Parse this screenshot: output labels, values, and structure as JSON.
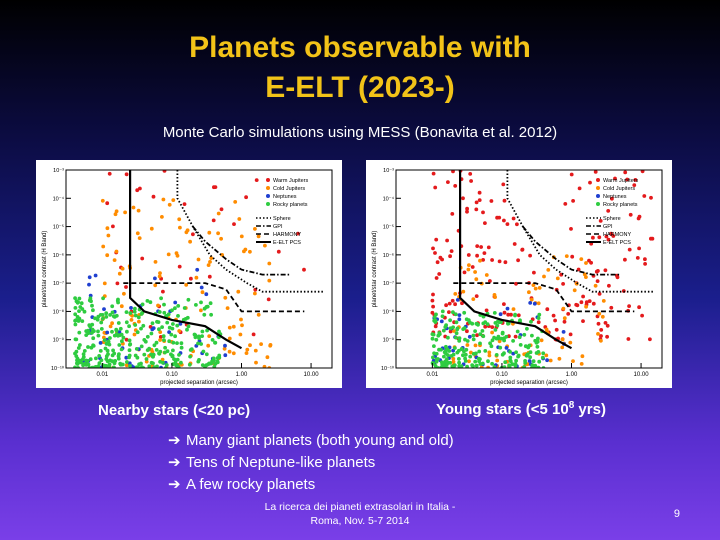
{
  "slide": {
    "title_line1": "Planets observable with",
    "title_line2": "E-ELT (2023-)",
    "subtitle": "Monte Carlo simulations using MESS (Bonavita et al. 2012)",
    "caption_left": "Nearby stars (<20 pc)",
    "caption_right_pre": "Young stars (<5 10",
    "caption_right_sup": "8",
    "caption_right_post": " yrs)",
    "bullets": [
      "Many giant planets (both young and old)",
      "Tens of Neptune-like planets",
      "A few rocky planets"
    ],
    "bullet_arrow": "➔",
    "footer_line1": "La ricerca dei pianeti extrasolari in Italia -",
    "footer_line2": "Roma, Nov. 5-7 2014",
    "page_number": "9"
  },
  "chart_data": [
    {
      "type": "scatter",
      "panel": "left",
      "xlabel": "projected separation (arcsec)",
      "ylabel": "planet/star contrast (H Band)",
      "xscale": "log",
      "yscale": "log",
      "xlim": [
        0.003,
        20
      ],
      "ylim": [
        1e-10,
        0.001
      ],
      "xticks": [
        "0.01",
        "0.10",
        "1.00",
        "10.00"
      ],
      "yticks": [
        "10⁻¹⁰",
        "10⁻⁹",
        "10⁻⁸",
        "10⁻⁷",
        "10⁻⁶",
        "10⁻⁵",
        "10⁻⁴",
        "10⁻³"
      ],
      "series": [
        {
          "name": "Warm Jupiters",
          "color": "#e41a1c",
          "count": 40,
          "x_range": [
            0.01,
            10
          ],
          "y_range": [
            1e-09,
            0.001
          ]
        },
        {
          "name": "Cold Jupiters",
          "color": "#ff8c00",
          "count": 140,
          "x_range": [
            0.01,
            3
          ],
          "y_range": [
            1e-10,
            0.0001
          ]
        },
        {
          "name": "Neptunes",
          "color": "#1f3fd0",
          "count": 50,
          "x_range": [
            0.005,
            0.6
          ],
          "y_range": [
            1e-10,
            3e-07
          ]
        },
        {
          "name": "Rocky planets",
          "color": "#2ecc40",
          "count": 320,
          "x_range": [
            0.004,
            0.5
          ],
          "y_range": [
            1e-10,
            3e-08
          ]
        }
      ],
      "curves": [
        {
          "name": "Sphere",
          "style": "dotted",
          "x": [
            0.12,
            0.12,
            0.2,
            0.35,
            0.6,
            1.2,
            2.0,
            5.0,
            15.0
          ],
          "y": [
            0.001,
            0.0001,
            1e-05,
            1e-06,
            3e-07,
            1e-07,
            5e-08,
            5e-08,
            5e-08
          ]
        },
        {
          "name": "GPI",
          "style": "dashdot",
          "x": [
            0.2,
            0.3,
            0.6,
            1.0,
            2.0,
            5.0
          ],
          "y": [
            1e-05,
            3e-06,
            7e-07,
            3e-07,
            2e-07,
            2e-07
          ]
        },
        {
          "name": "HARMONY",
          "style": "dashed",
          "x": [
            0.02,
            0.1,
            0.3,
            0.6,
            1.0,
            2.0,
            8.0
          ],
          "y": [
            1e-07,
            1e-07,
            1e-07,
            6e-08,
            1e-08,
            1e-08,
            1e-08
          ]
        },
        {
          "name": "E-ELT PCS",
          "style": "solid",
          "x": [
            0.025,
            0.025,
            0.04,
            0.1,
            0.3,
            0.6,
            1.0
          ],
          "y": [
            0.001,
            3e-08,
            1e-08,
            5e-09,
            3e-09,
            1e-09,
            5e-10
          ]
        }
      ],
      "legend_position": "top-right"
    },
    {
      "type": "scatter",
      "panel": "right",
      "xlabel": "projected separation (arcsec)",
      "ylabel": "planet/star contrast (H Band)",
      "xscale": "log",
      "yscale": "log",
      "xlim": [
        0.003,
        20
      ],
      "ylim": [
        1e-10,
        0.001
      ],
      "xticks": [
        "0.01",
        "0.10",
        "1.00",
        "10.00"
      ],
      "yticks": [
        "10⁻¹⁰",
        "10⁻⁹",
        "10⁻⁸",
        "10⁻⁷",
        "10⁻⁶",
        "10⁻⁵",
        "10⁻⁴",
        "10⁻³"
      ],
      "series": [
        {
          "name": "Warm Jupiters",
          "color": "#e41a1c",
          "count": 200,
          "x_range": [
            0.01,
            15
          ],
          "y_range": [
            1e-09,
            0.001
          ]
        },
        {
          "name": "Cold Jupiters",
          "color": "#ff8c00",
          "count": 90,
          "x_range": [
            0.02,
            3
          ],
          "y_range": [
            1e-10,
            1e-06
          ]
        },
        {
          "name": "Neptunes",
          "color": "#1f3fd0",
          "count": 45,
          "x_range": [
            0.01,
            1
          ],
          "y_range": [
            1e-10,
            3e-08
          ]
        },
        {
          "name": "Rocky planets",
          "color": "#2ecc40",
          "count": 220,
          "x_range": [
            0.01,
            0.4
          ],
          "y_range": [
            1e-10,
            1e-08
          ]
        }
      ],
      "curves": [
        {
          "name": "Sphere",
          "style": "dotted",
          "x": [
            0.12,
            0.12,
            0.2,
            0.35,
            0.6,
            1.2,
            2.0,
            5.0,
            15.0
          ],
          "y": [
            0.001,
            0.0001,
            1e-05,
            1e-06,
            3e-07,
            1e-07,
            5e-08,
            5e-08,
            5e-08
          ]
        },
        {
          "name": "GPI",
          "style": "dashdot",
          "x": [
            0.2,
            0.3,
            0.6,
            1.0,
            2.0,
            5.0
          ],
          "y": [
            1e-05,
            3e-06,
            7e-07,
            3e-07,
            2e-07,
            2e-07
          ]
        },
        {
          "name": "HARMONY",
          "style": "dashed",
          "x": [
            0.02,
            0.1,
            0.3,
            0.6,
            1.0,
            2.0,
            8.0
          ],
          "y": [
            1e-07,
            1e-07,
            1e-07,
            6e-08,
            1e-08,
            1e-08,
            1e-08
          ]
        },
        {
          "name": "E-ELT PCS",
          "style": "solid",
          "x": [
            0.025,
            0.025,
            0.04,
            0.1,
            0.3,
            0.6,
            1.0
          ],
          "y": [
            0.001,
            3e-08,
            1e-08,
            5e-09,
            3e-09,
            1e-09,
            5e-10
          ]
        }
      ],
      "legend_position": "top-right"
    }
  ]
}
